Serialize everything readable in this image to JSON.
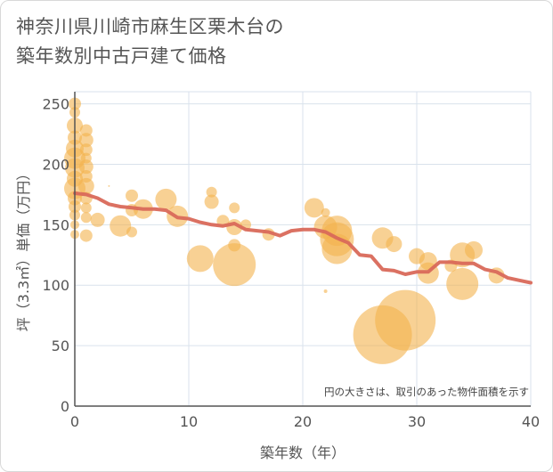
{
  "title_line1": "神奈川県川崎市麻生区栗木台の",
  "title_line2": "築年数別中古戸建て価格",
  "chart_data": {
    "type": "scatter",
    "title": "神奈川県川崎市麻生区栗木台の築年数別中古戸建て価格",
    "xlabel": "築年数（年）",
    "ylabel": "坪（3.3㎡）単価（万円）",
    "xlim": [
      0,
      40
    ],
    "ylim": [
      0,
      260
    ],
    "xticks": [
      0,
      10,
      20,
      30,
      40
    ],
    "yticks": [
      0,
      50,
      100,
      150,
      200,
      250
    ],
    "grid": true,
    "note": "円の大きさは、取引のあった物件面積を示す",
    "colors": {
      "bubble": "#f3b34d",
      "trend": "#d9695a",
      "grid": "#d9e2ec",
      "axis": "#555555"
    },
    "bubbles": [
      {
        "x": 0,
        "y": 250,
        "r": 7
      },
      {
        "x": 0,
        "y": 243,
        "r": 6
      },
      {
        "x": 0,
        "y": 232,
        "r": 9
      },
      {
        "x": 0,
        "y": 222,
        "r": 8
      },
      {
        "x": 0,
        "y": 213,
        "r": 10
      },
      {
        "x": 0,
        "y": 205,
        "r": 12
      },
      {
        "x": 0,
        "y": 197,
        "r": 11
      },
      {
        "x": 0,
        "y": 188,
        "r": 9
      },
      {
        "x": 0,
        "y": 180,
        "r": 12
      },
      {
        "x": 0,
        "y": 172,
        "r": 8
      },
      {
        "x": 0,
        "y": 165,
        "r": 7
      },
      {
        "x": 0,
        "y": 158,
        "r": 6
      },
      {
        "x": 0,
        "y": 150,
        "r": 5
      },
      {
        "x": 0,
        "y": 142,
        "r": 5
      },
      {
        "x": 1,
        "y": 228,
        "r": 7
      },
      {
        "x": 1,
        "y": 220,
        "r": 8
      },
      {
        "x": 1,
        "y": 212,
        "r": 7
      },
      {
        "x": 1,
        "y": 205,
        "r": 6
      },
      {
        "x": 1,
        "y": 198,
        "r": 8
      },
      {
        "x": 1,
        "y": 190,
        "r": 7
      },
      {
        "x": 1,
        "y": 182,
        "r": 9
      },
      {
        "x": 1,
        "y": 172,
        "r": 7
      },
      {
        "x": 1,
        "y": 164,
        "r": 6
      },
      {
        "x": 1,
        "y": 156,
        "r": 6
      },
      {
        "x": 1,
        "y": 141,
        "r": 7
      },
      {
        "x": 2,
        "y": 154,
        "r": 8
      },
      {
        "x": 3,
        "y": 182,
        "r": 1
      },
      {
        "x": 4,
        "y": 149,
        "r": 12
      },
      {
        "x": 5,
        "y": 144,
        "r": 6
      },
      {
        "x": 5,
        "y": 174,
        "r": 7
      },
      {
        "x": 5,
        "y": 162,
        "r": 7
      },
      {
        "x": 6,
        "y": 163,
        "r": 11
      },
      {
        "x": 8,
        "y": 171,
        "r": 12
      },
      {
        "x": 9,
        "y": 157,
        "r": 12
      },
      {
        "x": 11,
        "y": 122,
        "r": 15
      },
      {
        "x": 12,
        "y": 169,
        "r": 8
      },
      {
        "x": 12,
        "y": 177,
        "r": 6
      },
      {
        "x": 13,
        "y": 153,
        "r": 7
      },
      {
        "x": 14,
        "y": 164,
        "r": 6
      },
      {
        "x": 14,
        "y": 148,
        "r": 9
      },
      {
        "x": 14,
        "y": 133,
        "r": 7
      },
      {
        "x": 14,
        "y": 117,
        "r": 24
      },
      {
        "x": 15,
        "y": 150,
        "r": 6
      },
      {
        "x": 17,
        "y": 142,
        "r": 7
      },
      {
        "x": 21,
        "y": 164,
        "r": 11
      },
      {
        "x": 22,
        "y": 160,
        "r": 5
      },
      {
        "x": 22,
        "y": 95,
        "r": 2
      },
      {
        "x": 22,
        "y": 148,
        "r": 13
      },
      {
        "x": 23,
        "y": 145,
        "r": 17
      },
      {
        "x": 23,
        "y": 138,
        "r": 19
      },
      {
        "x": 23,
        "y": 130,
        "r": 17
      },
      {
        "x": 27,
        "y": 139,
        "r": 12
      },
      {
        "x": 28,
        "y": 134,
        "r": 9
      },
      {
        "x": 27,
        "y": 59,
        "r": 33
      },
      {
        "x": 29,
        "y": 71,
        "r": 34
      },
      {
        "x": 30,
        "y": 124,
        "r": 9
      },
      {
        "x": 31,
        "y": 120,
        "r": 10
      },
      {
        "x": 31,
        "y": 110,
        "r": 12
      },
      {
        "x": 33,
        "y": 116,
        "r": 7
      },
      {
        "x": 34,
        "y": 125,
        "r": 14
      },
      {
        "x": 34,
        "y": 101,
        "r": 18
      },
      {
        "x": 35,
        "y": 129,
        "r": 10
      },
      {
        "x": 37,
        "y": 108,
        "r": 9
      }
    ],
    "trend": {
      "x": [
        0,
        1,
        2,
        3,
        4,
        5,
        6,
        7,
        8,
        9,
        10,
        11,
        12,
        13,
        14,
        15,
        16,
        17,
        18,
        19,
        20,
        21,
        22,
        23,
        24,
        25,
        26,
        27,
        28,
        29,
        30,
        31,
        32,
        33,
        34,
        35,
        36,
        37,
        38,
        39,
        40
      ],
      "y": [
        176,
        175,
        172,
        167,
        165,
        164,
        163,
        163,
        162,
        156,
        155,
        152,
        150,
        149,
        151,
        146,
        145,
        144,
        141,
        145,
        146,
        146,
        144,
        139,
        135,
        125,
        124,
        113,
        112,
        109,
        111,
        111,
        119,
        119,
        118,
        118,
        113,
        111,
        106,
        104,
        102
      ]
    }
  }
}
